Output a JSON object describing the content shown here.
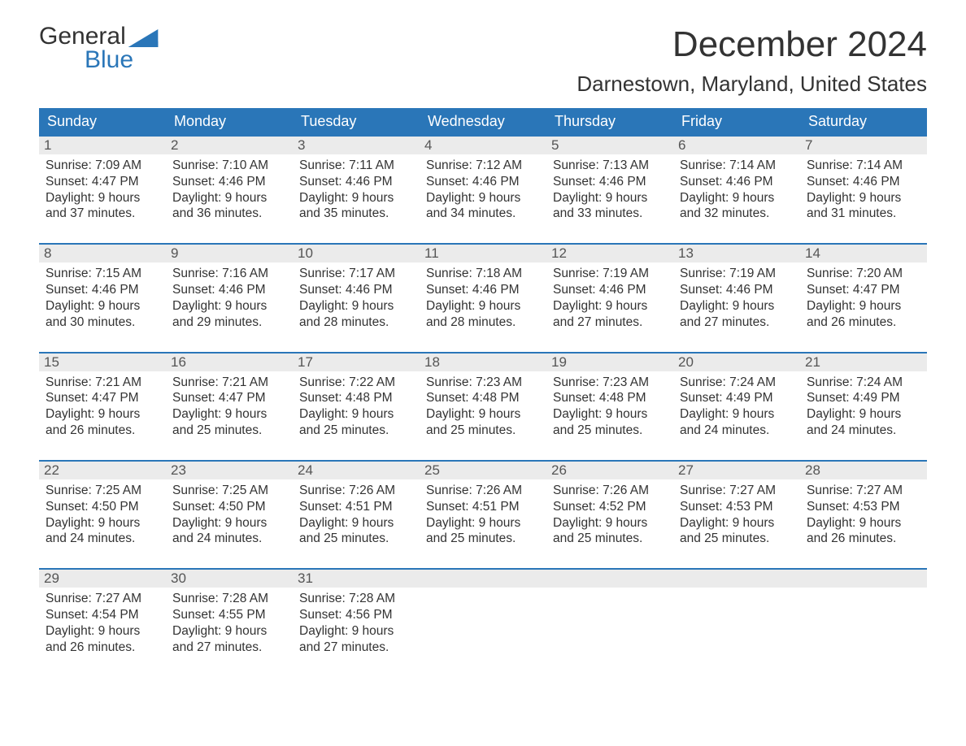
{
  "logo": {
    "top": "General",
    "bottom": "Blue",
    "flag_color": "#2a76b8"
  },
  "title": "December 2024",
  "location": "Darnestown, Maryland, United States",
  "colors": {
    "header_bg": "#2a76b8",
    "header_text": "#ffffff",
    "date_row_bg": "#ebebeb",
    "week_border": "#2a76b8",
    "body_text": "#333333",
    "date_text": "#555555",
    "background": "#ffffff"
  },
  "day_names": [
    "Sunday",
    "Monday",
    "Tuesday",
    "Wednesday",
    "Thursday",
    "Friday",
    "Saturday"
  ],
  "weeks": [
    [
      {
        "date": "1",
        "sunrise": "Sunrise: 7:09 AM",
        "sunset": "Sunset: 4:47 PM",
        "daylight1": "Daylight: 9 hours",
        "daylight2": "and 37 minutes."
      },
      {
        "date": "2",
        "sunrise": "Sunrise: 7:10 AM",
        "sunset": "Sunset: 4:46 PM",
        "daylight1": "Daylight: 9 hours",
        "daylight2": "and 36 minutes."
      },
      {
        "date": "3",
        "sunrise": "Sunrise: 7:11 AM",
        "sunset": "Sunset: 4:46 PM",
        "daylight1": "Daylight: 9 hours",
        "daylight2": "and 35 minutes."
      },
      {
        "date": "4",
        "sunrise": "Sunrise: 7:12 AM",
        "sunset": "Sunset: 4:46 PM",
        "daylight1": "Daylight: 9 hours",
        "daylight2": "and 34 minutes."
      },
      {
        "date": "5",
        "sunrise": "Sunrise: 7:13 AM",
        "sunset": "Sunset: 4:46 PM",
        "daylight1": "Daylight: 9 hours",
        "daylight2": "and 33 minutes."
      },
      {
        "date": "6",
        "sunrise": "Sunrise: 7:14 AM",
        "sunset": "Sunset: 4:46 PM",
        "daylight1": "Daylight: 9 hours",
        "daylight2": "and 32 minutes."
      },
      {
        "date": "7",
        "sunrise": "Sunrise: 7:14 AM",
        "sunset": "Sunset: 4:46 PM",
        "daylight1": "Daylight: 9 hours",
        "daylight2": "and 31 minutes."
      }
    ],
    [
      {
        "date": "8",
        "sunrise": "Sunrise: 7:15 AM",
        "sunset": "Sunset: 4:46 PM",
        "daylight1": "Daylight: 9 hours",
        "daylight2": "and 30 minutes."
      },
      {
        "date": "9",
        "sunrise": "Sunrise: 7:16 AM",
        "sunset": "Sunset: 4:46 PM",
        "daylight1": "Daylight: 9 hours",
        "daylight2": "and 29 minutes."
      },
      {
        "date": "10",
        "sunrise": "Sunrise: 7:17 AM",
        "sunset": "Sunset: 4:46 PM",
        "daylight1": "Daylight: 9 hours",
        "daylight2": "and 28 minutes."
      },
      {
        "date": "11",
        "sunrise": "Sunrise: 7:18 AM",
        "sunset": "Sunset: 4:46 PM",
        "daylight1": "Daylight: 9 hours",
        "daylight2": "and 28 minutes."
      },
      {
        "date": "12",
        "sunrise": "Sunrise: 7:19 AM",
        "sunset": "Sunset: 4:46 PM",
        "daylight1": "Daylight: 9 hours",
        "daylight2": "and 27 minutes."
      },
      {
        "date": "13",
        "sunrise": "Sunrise: 7:19 AM",
        "sunset": "Sunset: 4:46 PM",
        "daylight1": "Daylight: 9 hours",
        "daylight2": "and 27 minutes."
      },
      {
        "date": "14",
        "sunrise": "Sunrise: 7:20 AM",
        "sunset": "Sunset: 4:47 PM",
        "daylight1": "Daylight: 9 hours",
        "daylight2": "and 26 minutes."
      }
    ],
    [
      {
        "date": "15",
        "sunrise": "Sunrise: 7:21 AM",
        "sunset": "Sunset: 4:47 PM",
        "daylight1": "Daylight: 9 hours",
        "daylight2": "and 26 minutes."
      },
      {
        "date": "16",
        "sunrise": "Sunrise: 7:21 AM",
        "sunset": "Sunset: 4:47 PM",
        "daylight1": "Daylight: 9 hours",
        "daylight2": "and 25 minutes."
      },
      {
        "date": "17",
        "sunrise": "Sunrise: 7:22 AM",
        "sunset": "Sunset: 4:48 PM",
        "daylight1": "Daylight: 9 hours",
        "daylight2": "and 25 minutes."
      },
      {
        "date": "18",
        "sunrise": "Sunrise: 7:23 AM",
        "sunset": "Sunset: 4:48 PM",
        "daylight1": "Daylight: 9 hours",
        "daylight2": "and 25 minutes."
      },
      {
        "date": "19",
        "sunrise": "Sunrise: 7:23 AM",
        "sunset": "Sunset: 4:48 PM",
        "daylight1": "Daylight: 9 hours",
        "daylight2": "and 25 minutes."
      },
      {
        "date": "20",
        "sunrise": "Sunrise: 7:24 AM",
        "sunset": "Sunset: 4:49 PM",
        "daylight1": "Daylight: 9 hours",
        "daylight2": "and 24 minutes."
      },
      {
        "date": "21",
        "sunrise": "Sunrise: 7:24 AM",
        "sunset": "Sunset: 4:49 PM",
        "daylight1": "Daylight: 9 hours",
        "daylight2": "and 24 minutes."
      }
    ],
    [
      {
        "date": "22",
        "sunrise": "Sunrise: 7:25 AM",
        "sunset": "Sunset: 4:50 PM",
        "daylight1": "Daylight: 9 hours",
        "daylight2": "and 24 minutes."
      },
      {
        "date": "23",
        "sunrise": "Sunrise: 7:25 AM",
        "sunset": "Sunset: 4:50 PM",
        "daylight1": "Daylight: 9 hours",
        "daylight2": "and 24 minutes."
      },
      {
        "date": "24",
        "sunrise": "Sunrise: 7:26 AM",
        "sunset": "Sunset: 4:51 PM",
        "daylight1": "Daylight: 9 hours",
        "daylight2": "and 25 minutes."
      },
      {
        "date": "25",
        "sunrise": "Sunrise: 7:26 AM",
        "sunset": "Sunset: 4:51 PM",
        "daylight1": "Daylight: 9 hours",
        "daylight2": "and 25 minutes."
      },
      {
        "date": "26",
        "sunrise": "Sunrise: 7:26 AM",
        "sunset": "Sunset: 4:52 PM",
        "daylight1": "Daylight: 9 hours",
        "daylight2": "and 25 minutes."
      },
      {
        "date": "27",
        "sunrise": "Sunrise: 7:27 AM",
        "sunset": "Sunset: 4:53 PM",
        "daylight1": "Daylight: 9 hours",
        "daylight2": "and 25 minutes."
      },
      {
        "date": "28",
        "sunrise": "Sunrise: 7:27 AM",
        "sunset": "Sunset: 4:53 PM",
        "daylight1": "Daylight: 9 hours",
        "daylight2": "and 26 minutes."
      }
    ],
    [
      {
        "date": "29",
        "sunrise": "Sunrise: 7:27 AM",
        "sunset": "Sunset: 4:54 PM",
        "daylight1": "Daylight: 9 hours",
        "daylight2": "and 26 minutes."
      },
      {
        "date": "30",
        "sunrise": "Sunrise: 7:28 AM",
        "sunset": "Sunset: 4:55 PM",
        "daylight1": "Daylight: 9 hours",
        "daylight2": "and 27 minutes."
      },
      {
        "date": "31",
        "sunrise": "Sunrise: 7:28 AM",
        "sunset": "Sunset: 4:56 PM",
        "daylight1": "Daylight: 9 hours",
        "daylight2": "and 27 minutes."
      },
      null,
      null,
      null,
      null
    ]
  ]
}
